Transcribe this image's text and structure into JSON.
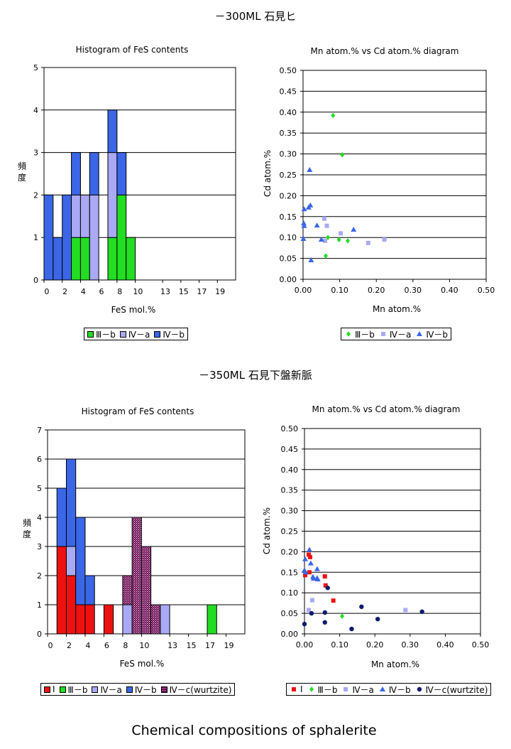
{
  "titles": {
    "section1": "－300ML 石見ヒ",
    "section2": "－350ML 石見下盤新脈",
    "footer": "Chemical compositions of sphalerite"
  },
  "colors": {
    "III-b": "#22dd22",
    "IV-a": "#a9a9f5",
    "IV-b": "#3b66e6",
    "I": "#ee1111",
    "IV-c": "#6e0a55",
    "IV-c-scatter": "#0c1a6e"
  },
  "chart_data": [
    {
      "type": "bar",
      "stacked": true,
      "title": "Histogram of FeS contents",
      "xlabel": "FeS mol.%",
      "ylabel": "頻度",
      "ylim": [
        0,
        5
      ],
      "yticks": [
        "0",
        "1",
        "2",
        "3",
        "4",
        "5"
      ],
      "xticks": [
        "0",
        "2",
        "4",
        "6",
        "8",
        "10",
        "13",
        "15",
        "17",
        "19"
      ],
      "bins": [
        "0",
        "1",
        "2",
        "3",
        "4",
        "5",
        "6",
        "7",
        "8",
        "9",
        "10",
        "11",
        "12",
        "13",
        "14",
        "15",
        "16",
        "17",
        "18",
        "19",
        "20"
      ],
      "series": [
        {
          "name": "Ⅲ－b",
          "key": "III-b",
          "values": [
            0,
            0,
            0,
            1,
            1,
            0,
            0,
            1,
            2,
            1,
            0,
            0,
            0,
            0,
            0,
            0,
            0,
            0,
            0,
            0,
            0
          ]
        },
        {
          "name": "Ⅳ－a",
          "key": "IV-a",
          "values": [
            0,
            0,
            0,
            1,
            1,
            2,
            0,
            2,
            0,
            0,
            0,
            0,
            0,
            0,
            0,
            0,
            0,
            0,
            0,
            0,
            0
          ]
        },
        {
          "name": "Ⅳ－b",
          "key": "IV-b",
          "values": [
            2,
            1,
            2,
            1,
            0,
            1,
            0,
            1,
            1,
            0,
            0,
            0,
            0,
            0,
            0,
            0,
            0,
            0,
            0,
            0,
            0
          ]
        }
      ],
      "legend": [
        "Ⅲ－b",
        "Ⅳ－a",
        "Ⅳ－b"
      ]
    },
    {
      "type": "scatter",
      "title": "Mn atom.% vs Cd atom.% diagram",
      "xlabel": "Mn atom.%",
      "ylabel": "Cd atom.%",
      "xlim": [
        0,
        0.5
      ],
      "ylim": [
        0,
        0.5
      ],
      "xticks": [
        "0.00",
        "0.10",
        "0.20",
        "0.30",
        "0.40",
        "0.50"
      ],
      "yticks": [
        "0.00",
        "0.05",
        "0.10",
        "0.15",
        "0.20",
        "0.25",
        "0.30",
        "0.35",
        "0.40",
        "0.45",
        "0.50"
      ],
      "series": [
        {
          "name": "Ⅲ－b",
          "key": "III-b",
          "marker": "diamond",
          "points": [
            [
              0.082,
              0.392
            ],
            [
              0.107,
              0.298
            ],
            [
              0.068,
              0.1
            ],
            [
              0.098,
              0.095
            ],
            [
              0.122,
              0.092
            ],
            [
              0.062,
              0.056
            ]
          ]
        },
        {
          "name": "Ⅳ－a",
          "key": "IV-a",
          "marker": "square",
          "points": [
            [
              0.058,
              0.145
            ],
            [
              0.065,
              0.128
            ],
            [
              0.103,
              0.11
            ],
            [
              0.06,
              0.092
            ],
            [
              0.178,
              0.087
            ],
            [
              0.222,
              0.095
            ]
          ]
        },
        {
          "name": "Ⅳ－b",
          "key": "IV-b",
          "marker": "triangle",
          "points": [
            [
              0.003,
              0.168
            ],
            [
              0.002,
              0.134
            ],
            [
              0.003,
              0.128
            ],
            [
              0.001,
              0.097
            ],
            [
              0.015,
              0.172
            ],
            [
              0.02,
              0.177
            ],
            [
              0.018,
              0.262
            ],
            [
              0.038,
              0.129
            ],
            [
              0.05,
              0.095
            ],
            [
              0.138,
              0.119
            ],
            [
              0.022,
              0.046
            ]
          ]
        }
      ],
      "legend": [
        "Ⅲ－b",
        "Ⅳ－a",
        "Ⅳ－b"
      ]
    },
    {
      "type": "bar",
      "stacked": true,
      "title": "Histogram of FeS contents",
      "xlabel": "FeS mol.%",
      "ylabel": "頻度",
      "ylim": [
        0,
        7
      ],
      "yticks": [
        "0",
        "1",
        "2",
        "3",
        "4",
        "5",
        "6",
        "7"
      ],
      "xticks": [
        "0",
        "2",
        "4",
        "6",
        "8",
        "10",
        "13",
        "15",
        "17",
        "19"
      ],
      "bins": [
        "0",
        "1",
        "2",
        "3",
        "4",
        "5",
        "6",
        "7",
        "8",
        "9",
        "10",
        "11",
        "12",
        "13",
        "14",
        "15",
        "16",
        "17",
        "18",
        "19",
        "20"
      ],
      "series": [
        {
          "name": "Ⅰ",
          "key": "I",
          "values": [
            0,
            3,
            2,
            1,
            1,
            0,
            1,
            0,
            0,
            0,
            0,
            0,
            0,
            0,
            0,
            0,
            0,
            0,
            0,
            0,
            0
          ]
        },
        {
          "name": "Ⅲ－b",
          "key": "III-b",
          "values": [
            0,
            0,
            0,
            0,
            0,
            0,
            0,
            0,
            0,
            0,
            0,
            0,
            0,
            0,
            0,
            0,
            0,
            1,
            0,
            0,
            0
          ]
        },
        {
          "name": "Ⅳ－a",
          "key": "IV-a",
          "values": [
            0,
            0,
            1,
            0,
            0,
            0,
            0,
            0,
            1,
            0,
            0,
            0,
            1,
            0,
            0,
            0,
            0,
            0,
            0,
            0,
            0
          ]
        },
        {
          "name": "Ⅳ－b",
          "key": "IV-b",
          "values": [
            0,
            2,
            3,
            3,
            1,
            0,
            0,
            0,
            0,
            0,
            0,
            0,
            0,
            0,
            0,
            0,
            0,
            0,
            0,
            0,
            0
          ]
        },
        {
          "name": "Ⅳ－c(wurtzite)",
          "key": "IV-c",
          "values": [
            0,
            0,
            0,
            0,
            0,
            0,
            0,
            0,
            1,
            4,
            3,
            0,
            0,
            0,
            0,
            0,
            0,
            0,
            0,
            0,
            0
          ]
        }
      ],
      "extra_iv_c": [
        0,
        0,
        0,
        0,
        0,
        0,
        0,
        0,
        0,
        0,
        0,
        1,
        0,
        0,
        0,
        0,
        0,
        0,
        0,
        0,
        0
      ],
      "legend": [
        "Ⅰ",
        "Ⅲ－b",
        "Ⅳ－a",
        "Ⅳ－b",
        "Ⅳ－c(wurtzite)"
      ]
    },
    {
      "type": "scatter",
      "title": "Mn atom.% vs Cd atom.% diagram",
      "xlabel": "Mn atom.%",
      "ylabel": "Cd atom.%",
      "xlim": [
        0,
        0.5
      ],
      "ylim": [
        0,
        0.5
      ],
      "xticks": [
        "0.00",
        "0.10",
        "0.20",
        "0.30",
        "0.40",
        "0.50"
      ],
      "yticks": [
        "0.00",
        "0.05",
        "0.10",
        "0.15",
        "0.20",
        "0.25",
        "0.30",
        "0.35",
        "0.40",
        "0.45",
        "0.50"
      ],
      "series": [
        {
          "name": "Ⅰ",
          "key": "I",
          "marker": "square",
          "points": [
            [
              0.002,
              0.143
            ],
            [
              0.012,
              0.193
            ],
            [
              0.016,
              0.187
            ],
            [
              0.014,
              0.15
            ],
            [
              0.058,
              0.14
            ],
            [
              0.06,
              0.118
            ],
            [
              0.082,
              0.081
            ]
          ]
        },
        {
          "name": "Ⅲ－b",
          "key": "III-b",
          "marker": "diamond",
          "points": [
            [
              0.107,
              0.043
            ]
          ]
        },
        {
          "name": "Ⅳ－a",
          "key": "IV-a",
          "marker": "square",
          "points": [
            [
              0.022,
              0.082
            ],
            [
              0.012,
              0.058
            ],
            [
              0.287,
              0.058
            ]
          ]
        },
        {
          "name": "Ⅳ－b",
          "key": "IV-b",
          "marker": "triangle",
          "points": [
            [
              0.002,
              0.182
            ],
            [
              0.014,
              0.205
            ],
            [
              0.018,
              0.172
            ],
            [
              0.0,
              0.155
            ],
            [
              0.003,
              0.15
            ],
            [
              0.036,
              0.158
            ],
            [
              0.024,
              0.139
            ],
            [
              0.036,
              0.136
            ],
            [
              0.038,
              0.133
            ],
            [
              0.026,
              0.135
            ]
          ]
        },
        {
          "name": "Ⅳ－c(wurtzite)",
          "key": "IV-c-scatter",
          "marker": "circle",
          "points": [
            [
              0.0,
              0.024
            ],
            [
              0.02,
              0.05
            ],
            [
              0.058,
              0.052
            ],
            [
              0.058,
              0.028
            ],
            [
              0.066,
              0.112
            ],
            [
              0.134,
              0.012
            ],
            [
              0.162,
              0.066
            ],
            [
              0.208,
              0.036
            ],
            [
              0.334,
              0.054
            ]
          ]
        }
      ],
      "legend": [
        "Ⅰ",
        "Ⅲ－b",
        "Ⅳ－a",
        "Ⅳ－b",
        "Ⅳ－c(wurtzite)"
      ]
    }
  ]
}
